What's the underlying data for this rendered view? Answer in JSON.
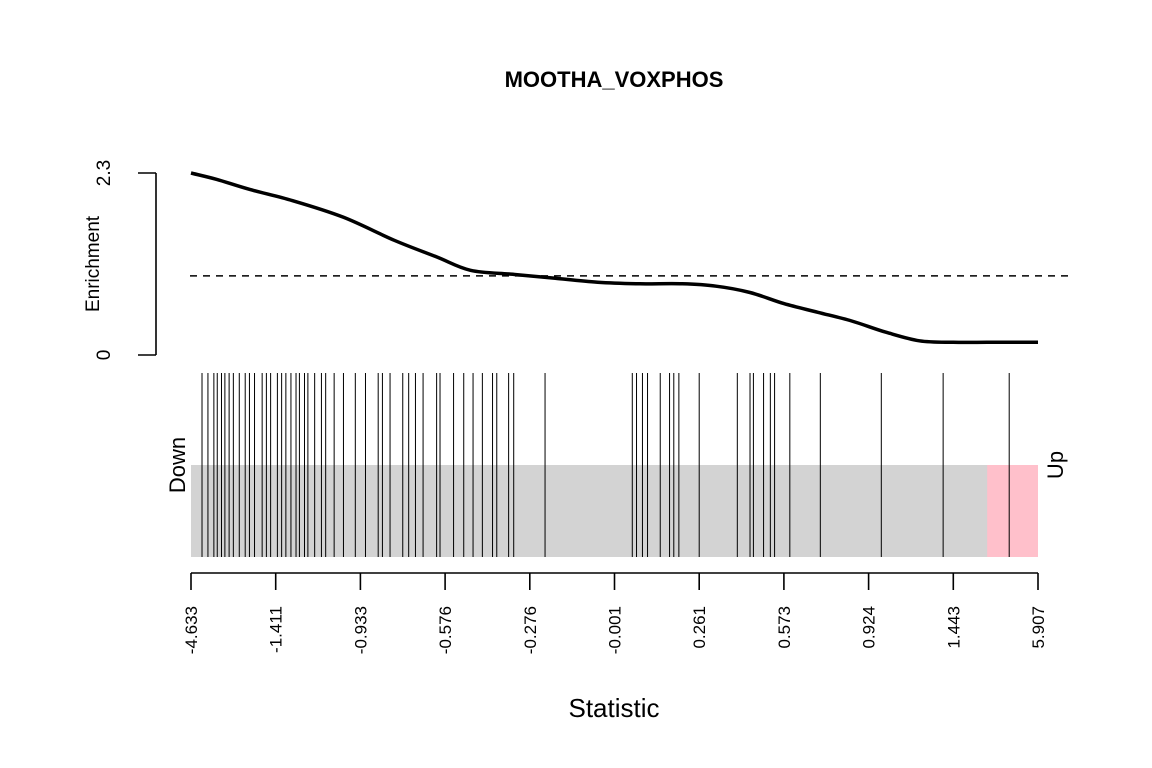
{
  "chart_data": {
    "type": "line",
    "title": "MOOTHA_VOXPHOS",
    "xlabel": "Statistic",
    "ylabel": "Enrichment",
    "ylim": [
      0,
      2.3
    ],
    "y_ticks": [
      "0",
      "2.3"
    ],
    "reference_line": {
      "y": 1.0,
      "style": "dashed"
    },
    "enrichment_curve": {
      "x": [
        0.0,
        0.03,
        0.07,
        0.12,
        0.18,
        0.24,
        0.29,
        0.33,
        0.38,
        0.43,
        0.48,
        0.53,
        0.58,
        0.62,
        0.66,
        0.7,
        0.74,
        0.78,
        0.82,
        0.86,
        0.9,
        0.94,
        0.97,
        1.0
      ],
      "y": [
        2.3,
        2.22,
        2.09,
        1.95,
        1.74,
        1.45,
        1.24,
        1.07,
        1.02,
        0.97,
        0.92,
        0.9,
        0.9,
        0.87,
        0.79,
        0.65,
        0.54,
        0.43,
        0.29,
        0.18,
        0.16,
        0.16,
        0.16,
        0.16
      ]
    },
    "x_ticks": [
      "-4.633",
      "-1.411",
      "-0.933",
      "-0.576",
      "-0.276",
      "-0.001",
      "0.261",
      "0.573",
      "0.924",
      "1.443",
      "5.907"
    ],
    "barcode_regions": {
      "down_label": "Down",
      "up_label": "Up",
      "down_color": "#add8e6",
      "middle_color": "#d3d3d3",
      "up_color": "#ffc0cb",
      "down_end": 0.055,
      "up_start": 0.94
    },
    "gene_positions": [
      0.013,
      0.02,
      0.027,
      0.031,
      0.036,
      0.04,
      0.045,
      0.05,
      0.057,
      0.064,
      0.069,
      0.075,
      0.084,
      0.089,
      0.094,
      0.102,
      0.107,
      0.112,
      0.118,
      0.124,
      0.128,
      0.134,
      0.138,
      0.146,
      0.154,
      0.159,
      0.169,
      0.18,
      0.194,
      0.206,
      0.221,
      0.226,
      0.235,
      0.25,
      0.257,
      0.265,
      0.274,
      0.29,
      0.294,
      0.31,
      0.322,
      0.333,
      0.344,
      0.356,
      0.361,
      0.375,
      0.381,
      0.418,
      0.521,
      0.526,
      0.533,
      0.539,
      0.554,
      0.565,
      0.57,
      0.576,
      0.6,
      0.645,
      0.66,
      0.664,
      0.676,
      0.684,
      0.689,
      0.707,
      0.743,
      0.815,
      0.888,
      0.966
    ]
  }
}
